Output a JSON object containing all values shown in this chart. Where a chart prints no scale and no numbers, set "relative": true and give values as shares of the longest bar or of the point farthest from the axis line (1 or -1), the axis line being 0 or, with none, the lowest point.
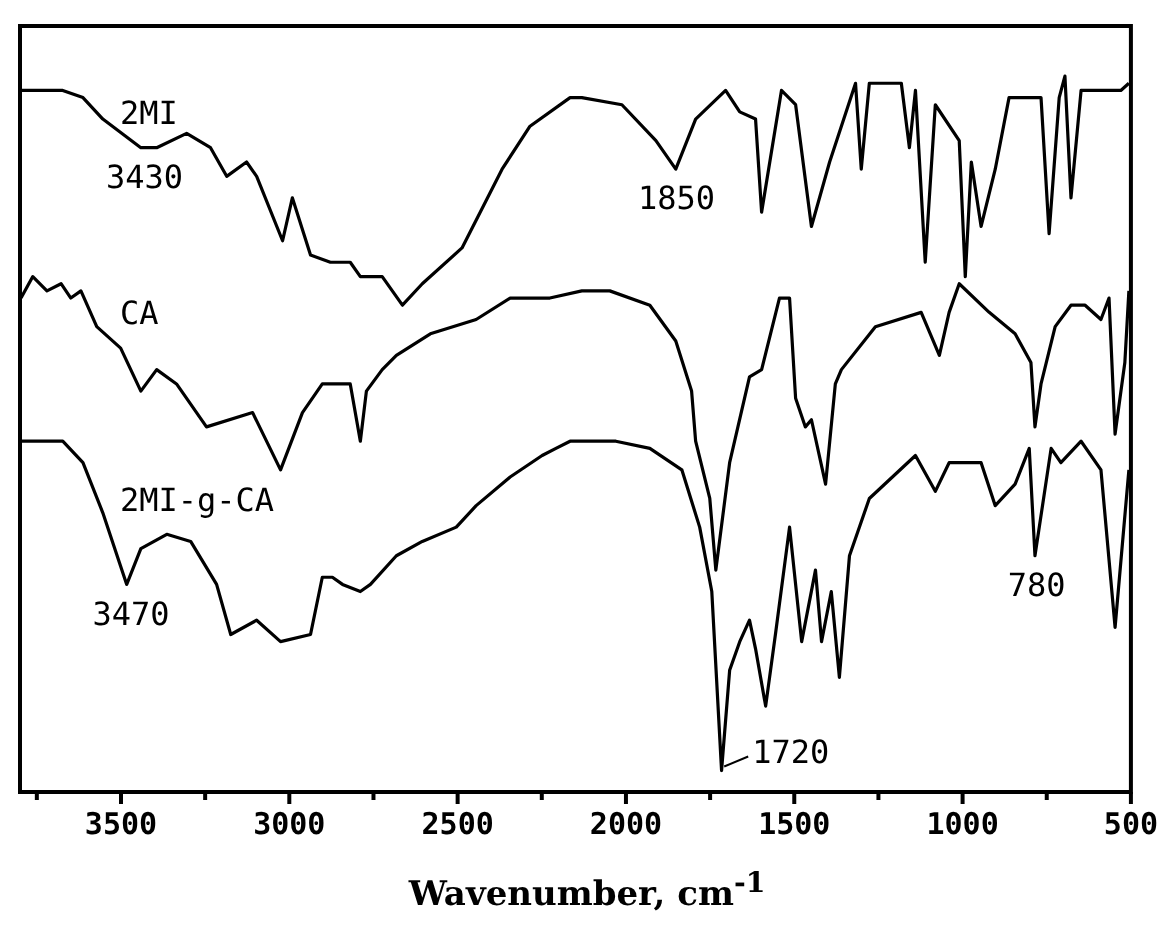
{
  "chart_data": {
    "type": "line",
    "relative": true,
    "xlabel": "Wavenumber, cm$^{-1}$",
    "xlim": [
      3800,
      500
    ],
    "xticks": [
      {
        "value": 3750,
        "label": null
      },
      3500,
      {
        "value": 3250,
        "label": null
      },
      3000,
      {
        "value": 2750,
        "label": null
      },
      2500,
      {
        "value": 2250,
        "label": null
      },
      2000,
      {
        "value": 1750,
        "label": null
      },
      1500,
      {
        "value": 1250,
        "label": null
      },
      1000,
      {
        "value": 750,
        "label": null
      },
      500
    ],
    "grid": false,
    "legend": false,
    "marker": "none",
    "line_style": "solid",
    "series": [
      {
        "name": "2MI",
        "color": "#000000",
        "x": [
          3797,
          3673,
          3613,
          3554,
          3441,
          3394,
          3305,
          3234,
          3186,
          3127,
          3097,
          3020,
          2991,
          2937,
          2878,
          2819,
          2789,
          2724,
          2664,
          2605,
          2487,
          2368,
          2285,
          2166,
          2131,
          2012,
          1911,
          1852,
          1793,
          1704,
          1662,
          1615,
          1597,
          1538,
          1496,
          1449,
          1395,
          1318,
          1301,
          1277,
          1182,
          1158,
          1140,
          1111,
          1081,
          1010,
          992,
          974,
          945,
          903,
          862,
          767,
          743,
          713,
          696,
          678,
          648,
          530,
          506
        ],
        "values": [
          0.98,
          0.98,
          0.97,
          0.94,
          0.9,
          0.9,
          0.92,
          0.9,
          0.86,
          0.88,
          0.86,
          0.77,
          0.83,
          0.75,
          0.74,
          0.74,
          0.72,
          0.72,
          0.68,
          0.71,
          0.76,
          0.87,
          0.93,
          0.97,
          0.97,
          0.96,
          0.91,
          0.87,
          0.94,
          0.98,
          0.95,
          0.94,
          0.81,
          0.98,
          0.96,
          0.79,
          0.88,
          0.99,
          0.87,
          0.99,
          0.99,
          0.9,
          0.98,
          0.74,
          0.96,
          0.91,
          0.72,
          0.88,
          0.79,
          0.87,
          0.97,
          0.97,
          0.78,
          0.97,
          1.0,
          0.83,
          0.98,
          0.98,
          0.99
        ]
      },
      {
        "name": "CA",
        "color": "#000000",
        "x": [
          3797,
          3762,
          3720,
          3678,
          3649,
          3619,
          3572,
          3501,
          3441,
          3394,
          3335,
          3246,
          3109,
          3026,
          2961,
          2902,
          2819,
          2789,
          2771,
          2724,
          2682,
          2581,
          2445,
          2344,
          2226,
          2131,
          2048,
          1929,
          1852,
          1805,
          1793,
          1751,
          1733,
          1692,
          1633,
          1597,
          1544,
          1514,
          1496,
          1467,
          1449,
          1407,
          1378,
          1360,
          1259,
          1123,
          1069,
          1040,
          1010,
          921,
          844,
          797,
          785,
          767,
          725,
          678,
          636,
          589,
          565,
          547,
          518,
          506
        ],
        "values": [
          0.69,
          0.72,
          0.7,
          0.71,
          0.69,
          0.7,
          0.65,
          0.62,
          0.56,
          0.59,
          0.57,
          0.51,
          0.53,
          0.45,
          0.53,
          0.57,
          0.57,
          0.49,
          0.56,
          0.59,
          0.61,
          0.64,
          0.66,
          0.69,
          0.69,
          0.7,
          0.7,
          0.68,
          0.63,
          0.56,
          0.49,
          0.41,
          0.31,
          0.46,
          0.58,
          0.59,
          0.69,
          0.69,
          0.55,
          0.51,
          0.52,
          0.43,
          0.57,
          0.59,
          0.65,
          0.67,
          0.61,
          0.67,
          0.71,
          0.67,
          0.64,
          0.6,
          0.51,
          0.57,
          0.65,
          0.68,
          0.68,
          0.66,
          0.69,
          0.5,
          0.6,
          0.7
        ]
      },
      {
        "name": "2MI-g-CA",
        "color": "#000000",
        "x": [
          3797,
          3750,
          3673,
          3613,
          3554,
          3483,
          3441,
          3364,
          3293,
          3216,
          3174,
          3097,
          3026,
          2937,
          2902,
          2872,
          2842,
          2789,
          2759,
          2682,
          2605,
          2504,
          2445,
          2344,
          2249,
          2208,
          2166,
          2030,
          1929,
          1834,
          1781,
          1745,
          1716,
          1692,
          1662,
          1633,
          1615,
          1585,
          1556,
          1514,
          1478,
          1437,
          1419,
          1390,
          1366,
          1336,
          1277,
          1140,
          1081,
          1040,
          945,
          903,
          844,
          802,
          785,
          737,
          708,
          648,
          589,
          547,
          506
        ],
        "values": [
          0.49,
          0.49,
          0.49,
          0.46,
          0.39,
          0.29,
          0.34,
          0.36,
          0.35,
          0.29,
          0.22,
          0.24,
          0.21,
          0.22,
          0.3,
          0.3,
          0.29,
          0.28,
          0.29,
          0.33,
          0.35,
          0.37,
          0.4,
          0.44,
          0.47,
          0.48,
          0.49,
          0.49,
          0.48,
          0.45,
          0.37,
          0.28,
          0.03,
          0.17,
          0.21,
          0.24,
          0.2,
          0.12,
          0.22,
          0.37,
          0.21,
          0.31,
          0.21,
          0.28,
          0.16,
          0.33,
          0.41,
          0.47,
          0.42,
          0.46,
          0.46,
          0.4,
          0.43,
          0.48,
          0.33,
          0.48,
          0.46,
          0.49,
          0.45,
          0.23,
          0.45
        ]
      }
    ],
    "annotations": [
      {
        "text": "3430",
        "x": 3430,
        "y": 0.9
      },
      {
        "text": "1850",
        "x": 1850,
        "y": 0.87
      },
      {
        "text": "3470",
        "x": 3470,
        "y": 0.29
      },
      {
        "text": "1720",
        "x": 1720,
        "y": 0.03
      },
      {
        "text": "780",
        "x": 780,
        "y": 0.33
      }
    ]
  }
}
